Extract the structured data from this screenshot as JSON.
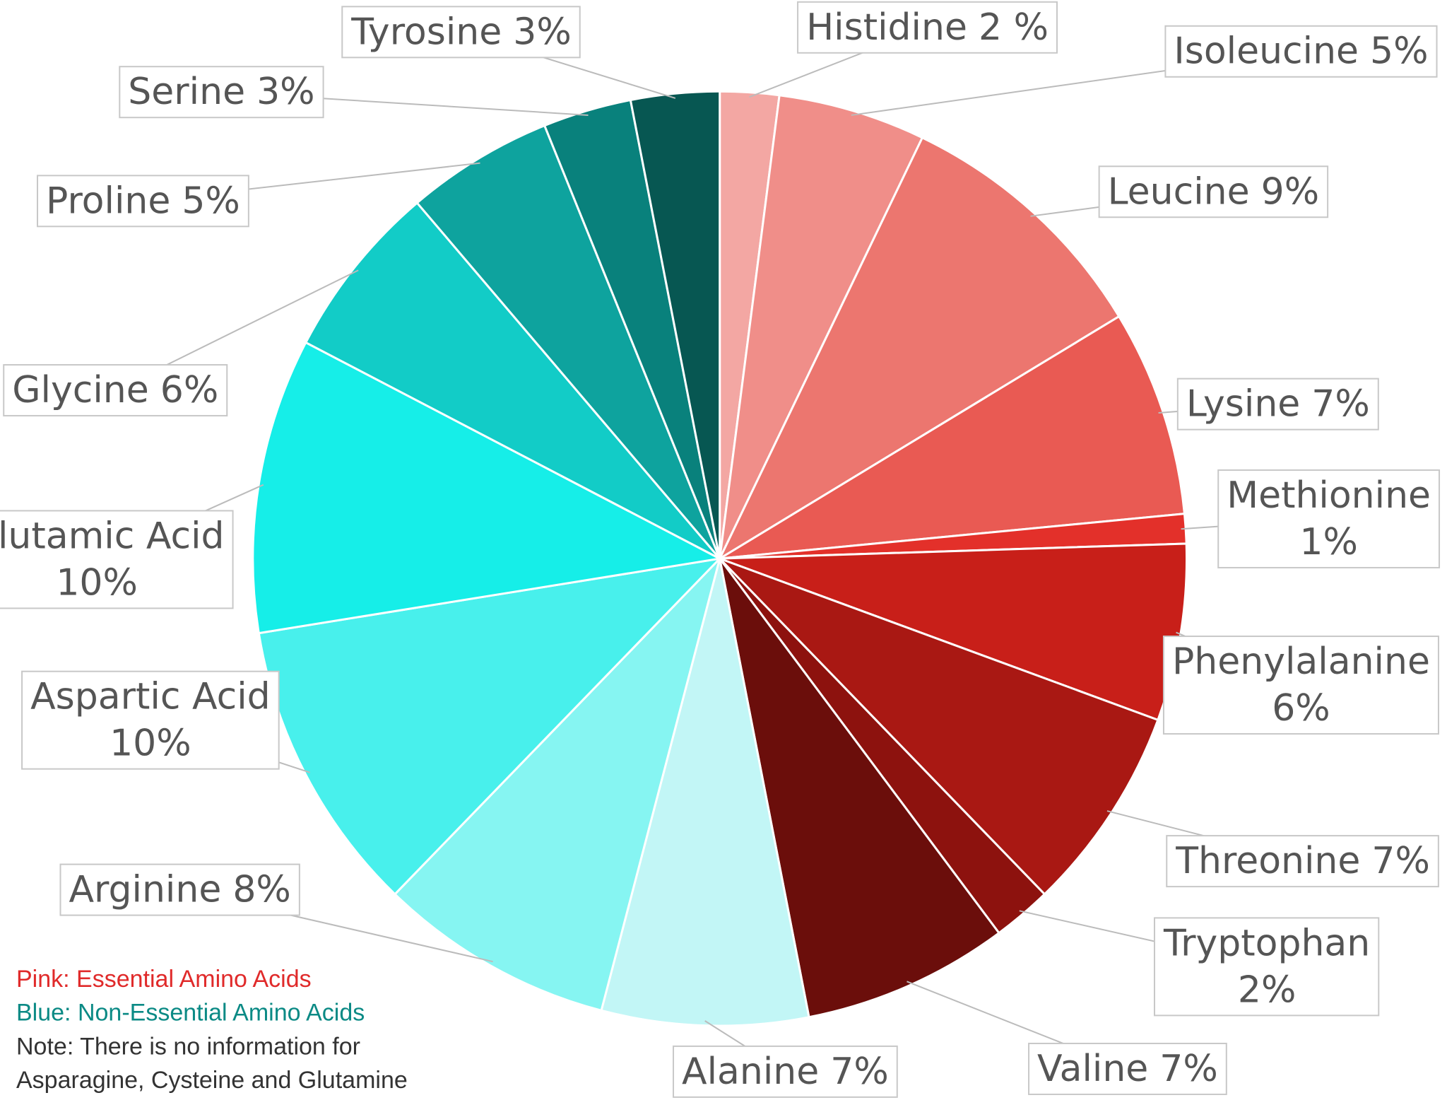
{
  "chart_data": {
    "type": "pie",
    "categories": [
      "Histidine",
      "Isoleucine",
      "Leucine",
      "Lysine",
      "Methionine",
      "Phenylalanine",
      "Threonine",
      "Tryptophan",
      "Valine",
      "Alanine",
      "Arginine",
      "Aspartic Acid",
      "Glutamic Acid",
      "Glycine",
      "Proline",
      "Serine",
      "Tyrosine"
    ],
    "values": [
      2,
      5,
      9,
      7,
      1,
      6,
      7,
      2,
      7,
      7,
      8,
      10,
      10,
      6,
      5,
      3,
      3
    ],
    "value_labels": [
      "2 %",
      "5%",
      "9%",
      "7%",
      "1%",
      "6%",
      "7%",
      "2%",
      "7%",
      "7%",
      "8%",
      "10%",
      "10%",
      "6%",
      "5%",
      "3%",
      "3%"
    ],
    "colors": [
      "#f3a7a3",
      "#f08e89",
      "#ec766f",
      "#e95a53",
      "#e3302a",
      "#c81f19",
      "#a91813",
      "#8d120e",
      "#6b0e0b",
      "#c2f6f6",
      "#86f5f2",
      "#48f0ec",
      "#16eee8",
      "#12ccc7",
      "#0ea39e",
      "#09817c",
      "#075752"
    ],
    "notes": [
      {
        "text": "Pink: Essential Amino Acids",
        "color": "#e02a2a"
      },
      {
        "text": "Blue: Non-Essential Amino Acids",
        "color": "#0b8a85"
      },
      {
        "text": "Note: There is no information for",
        "color": "#333333"
      },
      {
        "text": "Asparagine, Cysteine and Glutamine",
        "color": "#333333"
      }
    ]
  }
}
